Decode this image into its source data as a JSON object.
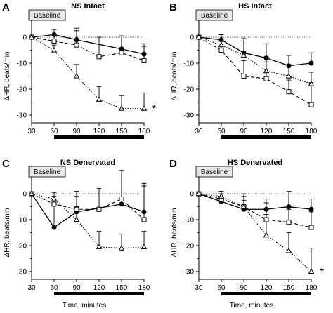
{
  "figure": {
    "x_axis_label": "Time, minutes",
    "y_axis_label": "ΔHR, beats/min",
    "baseline_label": "Baseline"
  },
  "chart_data": [
    {
      "panel_letter": "A",
      "title": "NS Intact",
      "type": "line",
      "x_ticks": [
        30,
        60,
        90,
        120,
        150,
        180
      ],
      "y_ticks": [
        0,
        -10,
        -20,
        -30
      ],
      "ylim": [
        -33,
        3
      ],
      "significance_mark": "*",
      "series": [
        {
          "marker": "filled-circle",
          "line": "solid",
          "x": [
            30,
            60,
            90,
            150,
            180
          ],
          "y": [
            0,
            1,
            -1,
            -4.5,
            -6.5
          ],
          "err_dir": "up",
          "err": [
            0,
            2,
            3.5,
            5,
            4
          ]
        },
        {
          "marker": "open-square",
          "line": "dashed",
          "x": [
            30,
            60,
            90,
            120,
            150,
            180
          ],
          "y": [
            0,
            -1.5,
            -3,
            -7.5,
            -6,
            -9
          ],
          "err_dir": "up",
          "err": [
            0,
            2.5,
            6.5,
            7.5,
            6.5,
            5.5
          ]
        },
        {
          "marker": "open-triangle",
          "line": "dotted",
          "x": [
            30,
            60,
            90,
            120,
            150,
            180
          ],
          "y": [
            0,
            -5,
            -15,
            -24,
            -27.5,
            -27.5
          ],
          "err_dir": "up",
          "err": [
            0,
            2,
            4.5,
            5,
            5,
            6
          ]
        }
      ]
    },
    {
      "panel_letter": "B",
      "title": "HS Intact",
      "type": "line",
      "x_ticks": [
        30,
        60,
        90,
        120,
        150,
        180
      ],
      "y_ticks": [
        0,
        -10,
        -20,
        -30
      ],
      "ylim": [
        -33,
        3
      ],
      "significance_mark": "",
      "series": [
        {
          "marker": "filled-circle",
          "line": "solid",
          "x": [
            30,
            60,
            90,
            120,
            150,
            180
          ],
          "y": [
            0,
            -1,
            -6,
            -8,
            -11,
            -10
          ],
          "err_dir": "up",
          "err": [
            0,
            2,
            4.5,
            5.5,
            4,
            4
          ]
        },
        {
          "marker": "open-square",
          "line": "dashed",
          "x": [
            30,
            60,
            90,
            120,
            150,
            180
          ],
          "y": [
            0,
            -5,
            -15,
            -16,
            -21,
            -26
          ],
          "err_dir": "up",
          "err": [
            0,
            4,
            6,
            6.5,
            4.5,
            8.5
          ]
        },
        {
          "marker": "open-triangle",
          "line": "dotted",
          "x": [
            30,
            60,
            90,
            120,
            150,
            180
          ],
          "y": [
            0,
            -3,
            -7,
            -13,
            -15,
            -18
          ],
          "err_dir": "up",
          "err": [
            0,
            4,
            6.5,
            5.5,
            4.5,
            4.5
          ]
        }
      ]
    },
    {
      "panel_letter": "C",
      "title": "NS Denervated",
      "type": "line",
      "x_ticks": [
        30,
        60,
        90,
        120,
        150,
        180
      ],
      "y_ticks": [
        0,
        -10,
        -20,
        -30
      ],
      "ylim": [
        -33,
        3
      ],
      "significance_mark": "",
      "series": [
        {
          "marker": "filled-circle",
          "line": "solid",
          "x": [
            30,
            60,
            90,
            150,
            180
          ],
          "y": [
            0,
            -13,
            -7,
            -4,
            -7
          ],
          "err_dir": "up",
          "err": [
            0,
            9,
            6,
            13,
            10
          ]
        },
        {
          "marker": "open-square",
          "line": "dashed",
          "x": [
            30,
            60,
            90,
            120,
            150,
            180
          ],
          "y": [
            0,
            -4,
            -6,
            -6,
            -2,
            -10
          ],
          "err_dir": "up",
          "err": [
            0,
            4.5,
            7,
            8,
            11,
            14
          ]
        },
        {
          "marker": "open-triangle",
          "line": "dotted",
          "x": [
            30,
            60,
            90,
            120,
            150,
            180
          ],
          "y": [
            0,
            -2,
            -10,
            -20.5,
            -21,
            -20.5
          ],
          "err_dir": "up",
          "err": [
            0,
            1,
            5,
            6,
            5.5,
            6
          ]
        }
      ]
    },
    {
      "panel_letter": "D",
      "title": "HS Denervated",
      "type": "line",
      "x_ticks": [
        30,
        60,
        90,
        120,
        150,
        180
      ],
      "y_ticks": [
        0,
        -10,
        -20,
        -30
      ],
      "ylim": [
        -33,
        3
      ],
      "significance_mark": "†",
      "series": [
        {
          "marker": "filled-circle",
          "line": "solid",
          "x": [
            30,
            60,
            90,
            120,
            150,
            180
          ],
          "y": [
            0,
            -3,
            -6,
            -6,
            -5,
            -6
          ],
          "err_dir": "up",
          "err": [
            0,
            0.5,
            3.5,
            4,
            6,
            4
          ]
        },
        {
          "marker": "open-square",
          "line": "dashed",
          "x": [
            30,
            60,
            90,
            120,
            150,
            180
          ],
          "y": [
            0,
            -2,
            -5,
            -10,
            -11,
            -13
          ],
          "err_dir": "up",
          "err": [
            0,
            2,
            4,
            6.5,
            5,
            6
          ]
        },
        {
          "marker": "open-triangle",
          "line": "dotted",
          "x": [
            30,
            60,
            90,
            120,
            150,
            180
          ],
          "y": [
            0,
            -1,
            -5,
            -16,
            -22,
            -30
          ],
          "err_dir": "up",
          "err": [
            0,
            2,
            5,
            8,
            7,
            9
          ]
        }
      ]
    }
  ]
}
